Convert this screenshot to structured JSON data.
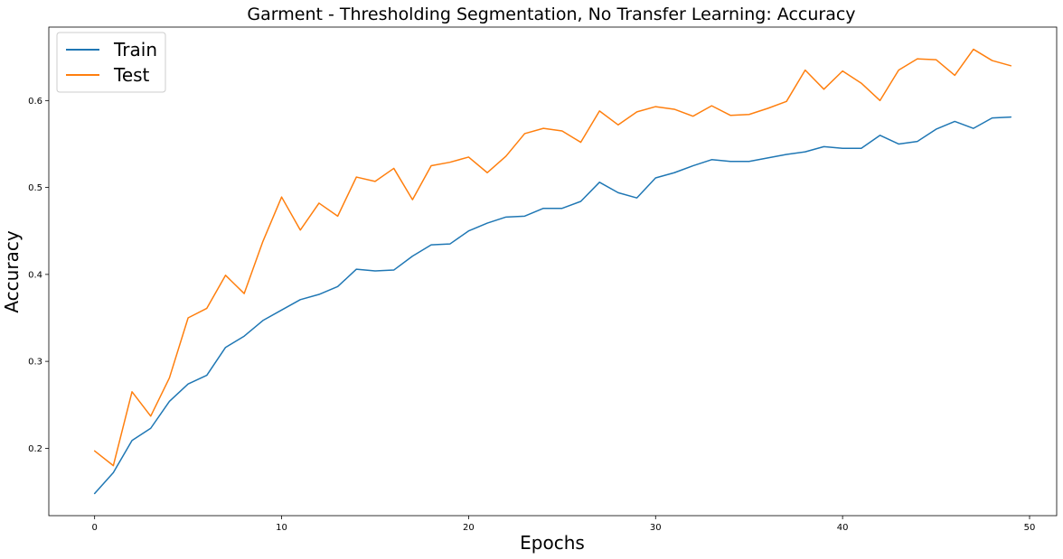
{
  "chart_data": {
    "type": "line",
    "title": "Garment - Thresholding Segmentation, No Transfer Learning: Accuracy",
    "xlabel": "Epochs",
    "ylabel": "Accuracy",
    "xlim": [
      -2.45,
      51.45
    ],
    "ylim": [
      0.1225,
      0.6845
    ],
    "xticks": [
      0,
      10,
      20,
      30,
      40,
      50
    ],
    "yticks": [
      0.2,
      0.3,
      0.4,
      0.5,
      0.6
    ],
    "ytick_labels": [
      "0.2",
      "0.3",
      "0.4",
      "0.5",
      "0.6"
    ],
    "grid": false,
    "legend_position": "top-left",
    "x": [
      0,
      1,
      2,
      3,
      4,
      5,
      6,
      7,
      8,
      9,
      10,
      11,
      12,
      13,
      14,
      15,
      16,
      17,
      18,
      19,
      20,
      21,
      22,
      23,
      24,
      25,
      26,
      27,
      28,
      29,
      30,
      31,
      32,
      33,
      34,
      35,
      36,
      37,
      38,
      39,
      40,
      41,
      42,
      43,
      44,
      45,
      46,
      47,
      48,
      49
    ],
    "series": [
      {
        "name": "Train",
        "color": "#1f77b4",
        "values": [
          0.148,
          0.172,
          0.209,
          0.223,
          0.254,
          0.274,
          0.284,
          0.316,
          0.329,
          0.347,
          0.359,
          0.371,
          0.377,
          0.386,
          0.406,
          0.404,
          0.405,
          0.421,
          0.434,
          0.435,
          0.45,
          0.459,
          0.466,
          0.467,
          0.476,
          0.476,
          0.484,
          0.506,
          0.494,
          0.488,
          0.511,
          0.517,
          0.525,
          0.532,
          0.53,
          0.53,
          0.534,
          0.538,
          0.541,
          0.547,
          0.545,
          0.545,
          0.56,
          0.55,
          0.553,
          0.567,
          0.576,
          0.568,
          0.58,
          0.581
        ]
      },
      {
        "name": "Test",
        "color": "#ff7f0e",
        "values": [
          0.197,
          0.18,
          0.265,
          0.237,
          0.281,
          0.35,
          0.361,
          0.399,
          0.378,
          0.438,
          0.489,
          0.451,
          0.482,
          0.467,
          0.512,
          0.507,
          0.522,
          0.486,
          0.525,
          0.529,
          0.535,
          0.517,
          0.536,
          0.562,
          0.568,
          0.565,
          0.552,
          0.588,
          0.572,
          0.587,
          0.593,
          0.59,
          0.582,
          0.594,
          0.583,
          0.584,
          0.591,
          0.599,
          0.635,
          0.613,
          0.634,
          0.62,
          0.6,
          0.635,
          0.648,
          0.647,
          0.629,
          0.659,
          0.646,
          0.64
        ]
      }
    ]
  }
}
